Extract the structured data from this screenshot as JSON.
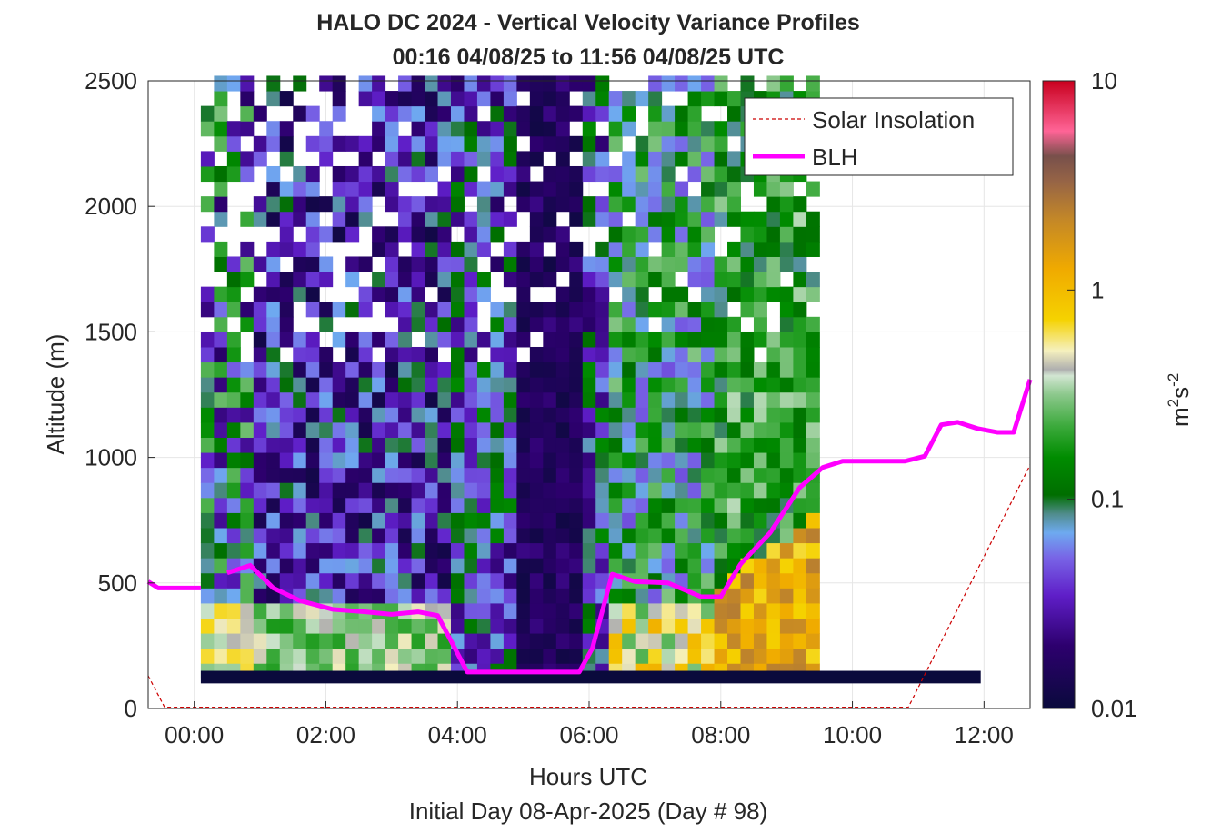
{
  "chart_data": {
    "type": "heatmap",
    "title": "HALO DC 2024 - Vertical Velocity Variance Profiles",
    "subtitle": "00:16 04/08/25 to 11:56 04/08/25  UTC",
    "xlabel": "Hours UTC",
    "ylabel": "Altitude (m)",
    "footer": "Initial Day 08-Apr-2025 (Day # 98)",
    "colorbar_label": "m²s⁻²",
    "colorbar_label_parts": {
      "base": "m",
      "exp1": "2",
      "mid": "s",
      "exp2": "-2"
    },
    "colorbar_ticks": [
      "0.01",
      "0.1",
      "1",
      "10"
    ],
    "colorbar_scale": "log",
    "colorbar_range": [
      0.01,
      10
    ],
    "x_ticks": [
      "00:00",
      "02:00",
      "04:00",
      "06:00",
      "08:00",
      "10:00",
      "12:00"
    ],
    "x_tick_values": [
      0,
      2,
      4,
      6,
      8,
      10,
      12
    ],
    "y_ticks": [
      "0",
      "500",
      "1000",
      "1500",
      "2000",
      "2500"
    ],
    "y_tick_values": [
      0,
      500,
      1000,
      1500,
      2000,
      2500
    ],
    "xlim": [
      -0.7,
      12.7
    ],
    "ylim": [
      0,
      2500
    ],
    "grid": true,
    "legend_position": "top-right",
    "legend": [
      {
        "name": "Solar Insolation",
        "color": "#cc0000",
        "style": "dashed"
      },
      {
        "name": "BLH",
        "color": "#ff00ff",
        "style": "solid"
      }
    ],
    "blh_series": {
      "name": "BLH",
      "segments": [
        {
          "x": [
            -0.7,
            -0.55,
            0.1
          ],
          "y": [
            505,
            480,
            480
          ]
        },
        {
          "x": [
            0.5,
            0.85,
            1.2,
            1.6,
            2.1,
            2.6,
            3.0,
            3.4,
            3.7,
            3.95,
            4.15,
            5.0,
            5.85,
            6.05,
            6.35,
            6.7,
            7.2,
            7.7,
            8.0,
            8.3,
            8.75,
            9.2,
            9.55,
            9.85,
            10.3,
            10.8,
            11.1,
            11.35,
            11.6,
            11.9,
            12.2,
            12.45,
            12.7
          ]
        }
      ],
      "y_main": [
        540,
        570,
        480,
        430,
        395,
        385,
        375,
        385,
        370,
        245,
        145,
        145,
        145,
        240,
        535,
        505,
        500,
        445,
        445,
        575,
        700,
        880,
        960,
        985,
        985,
        985,
        1005,
        1130,
        1140,
        1115,
        1100,
        1100,
        1310
      ]
    },
    "solar_insolation": {
      "name": "Solar Insolation",
      "x": [
        -0.7,
        -0.45,
        10.85,
        12.7
      ],
      "y": [
        130,
        5,
        5,
        970
      ]
    },
    "heatmap_grid": {
      "x_start": 0.2,
      "x_step": 0.2,
      "columns": 47,
      "y_start": 150,
      "y_step": 60,
      "rows": 40,
      "base_row": {
        "y_range": [
          100,
          150
        ],
        "value": 0.01
      },
      "value_unit": "m2 s-2"
    }
  }
}
